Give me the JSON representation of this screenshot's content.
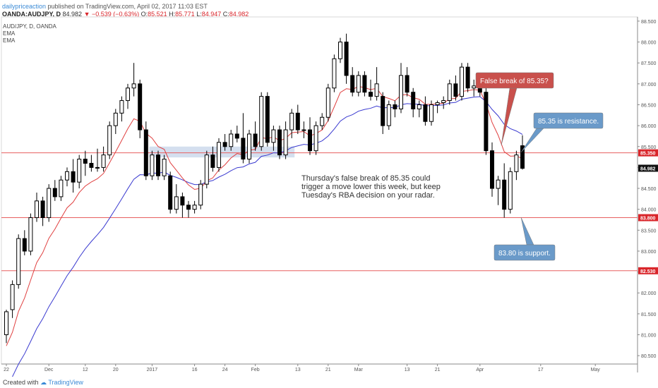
{
  "header": {
    "author": "dailypriceaction",
    "published_text": " published on TradingView.com, April 02, 2017 11:03 EST",
    "symbol": "OANDA:AUDJPY, D",
    "last_price": "84.982",
    "change": "−0.539 (−0.63%)",
    "open_label": "O:",
    "open_value": "85.521",
    "high_label": "H:",
    "high_value": "85.771",
    "low_label": "L:",
    "low_value": "84.947",
    "close_label": "C:",
    "close_value": "84.982"
  },
  "legend": {
    "title": "AUD/JPY, D, OANDA",
    "indicator1": "EMA",
    "indicator2": "EMA"
  },
  "footer": {
    "created_with": "Created with",
    "brand": "TradingView"
  },
  "annotations": {
    "main_text_lines": [
      "Thursday's false break of 85.35 could",
      "trigger a move lower this week, but keep",
      "Tuesday's RBA decision on your radar."
    ],
    "false_break": "False break of 85.35?",
    "resistance": "85.35 is resistance.",
    "support": "83.80 is support."
  },
  "colors": {
    "bull": "#ffffff",
    "bear": "#000000",
    "ema_fast": "#e04040",
    "ema_slow": "#3a3ad0",
    "level_line": "#e86060",
    "level_label": "#d9262b",
    "callout_red": "#c9504c",
    "callout_blue": "#6a9ac9",
    "zone": "#c6d4ea"
  },
  "chart_data": {
    "type": "candlestick",
    "y_axis": {
      "min": 80.3,
      "max": 88.6,
      "ticks": [
        "88.500",
        "88.000",
        "87.500",
        "87.000",
        "86.500",
        "86.000",
        "85.500",
        "85.000",
        "84.500",
        "84.000",
        "83.500",
        "83.000",
        "82.500",
        "82.000",
        "81.500",
        "81.000",
        "80.500"
      ]
    },
    "x_axis": {
      "labels": [
        {
          "i": 0,
          "t": "22"
        },
        {
          "i": 7,
          "t": "Dec"
        },
        {
          "i": 13,
          "t": "12"
        },
        {
          "i": 18,
          "t": "20"
        },
        {
          "i": 24,
          "t": "2017"
        },
        {
          "i": 31,
          "t": "16"
        },
        {
          "i": 36,
          "t": "24"
        },
        {
          "i": 41,
          "t": "Feb"
        },
        {
          "i": 48,
          "t": "13"
        },
        {
          "i": 53,
          "t": "21"
        },
        {
          "i": 58,
          "t": "Mar"
        },
        {
          "i": 66,
          "t": "13"
        },
        {
          "i": 71,
          "t": "21"
        },
        {
          "i": 78,
          "t": "Apr"
        },
        {
          "i": 88,
          "t": "17"
        },
        {
          "i": 97,
          "t": "May"
        }
      ]
    },
    "levels": [
      {
        "value": 85.35,
        "label": "85.350"
      },
      {
        "value": 83.8,
        "label": "83.800"
      },
      {
        "value": 82.53,
        "label": "82.530"
      }
    ],
    "last_price": {
      "value": 84.982,
      "label": "84.982"
    },
    "zone": {
      "from_i": 24,
      "to_i": 47,
      "low": 85.24,
      "high": 85.5
    },
    "candles": [
      {
        "o": 81.0,
        "h": 81.6,
        "l": 80.8,
        "c": 81.55
      },
      {
        "o": 81.6,
        "h": 82.3,
        "l": 81.4,
        "c": 82.2
      },
      {
        "o": 82.2,
        "h": 83.4,
        "l": 82.1,
        "c": 83.3
      },
      {
        "o": 83.3,
        "h": 83.5,
        "l": 82.9,
        "c": 83.0
      },
      {
        "o": 83.0,
        "h": 83.9,
        "l": 82.9,
        "c": 83.8
      },
      {
        "o": 83.8,
        "h": 84.4,
        "l": 83.7,
        "c": 84.2
      },
      {
        "o": 84.2,
        "h": 84.3,
        "l": 83.6,
        "c": 83.8
      },
      {
        "o": 83.8,
        "h": 84.6,
        "l": 83.7,
        "c": 84.5
      },
      {
        "o": 84.5,
        "h": 84.7,
        "l": 84.2,
        "c": 84.3
      },
      {
        "o": 84.3,
        "h": 84.8,
        "l": 84.2,
        "c": 84.7
      },
      {
        "o": 84.7,
        "h": 85.0,
        "l": 84.55,
        "c": 84.9
      },
      {
        "o": 84.9,
        "h": 85.2,
        "l": 84.4,
        "c": 84.65
      },
      {
        "o": 84.65,
        "h": 85.3,
        "l": 84.5,
        "c": 85.2
      },
      {
        "o": 85.2,
        "h": 85.4,
        "l": 84.8,
        "c": 85.1
      },
      {
        "o": 85.1,
        "h": 85.3,
        "l": 84.9,
        "c": 85.0
      },
      {
        "o": 85.0,
        "h": 85.45,
        "l": 84.9,
        "c": 85.0
      },
      {
        "o": 85.0,
        "h": 85.5,
        "l": 84.9,
        "c": 85.3
      },
      {
        "o": 85.3,
        "h": 86.1,
        "l": 85.2,
        "c": 86.0
      },
      {
        "o": 86.0,
        "h": 86.4,
        "l": 85.8,
        "c": 86.3
      },
      {
        "o": 86.3,
        "h": 86.7,
        "l": 86.1,
        "c": 86.6
      },
      {
        "o": 86.6,
        "h": 87.0,
        "l": 86.4,
        "c": 86.9
      },
      {
        "o": 86.9,
        "h": 87.5,
        "l": 86.7,
        "c": 87.0
      },
      {
        "o": 87.0,
        "h": 87.1,
        "l": 85.7,
        "c": 85.9
      },
      {
        "o": 85.9,
        "h": 86.1,
        "l": 84.7,
        "c": 84.8
      },
      {
        "o": 84.8,
        "h": 85.4,
        "l": 84.7,
        "c": 85.3
      },
      {
        "o": 85.3,
        "h": 85.4,
        "l": 84.7,
        "c": 84.8
      },
      {
        "o": 84.8,
        "h": 85.3,
        "l": 84.7,
        "c": 85.2
      },
      {
        "o": 84.8,
        "h": 84.9,
        "l": 83.9,
        "c": 84.0
      },
      {
        "o": 84.0,
        "h": 84.6,
        "l": 83.9,
        "c": 84.3
      },
      {
        "o": 84.3,
        "h": 84.4,
        "l": 83.8,
        "c": 84.1
      },
      {
        "o": 84.1,
        "h": 84.2,
        "l": 83.8,
        "c": 84.0
      },
      {
        "o": 84.0,
        "h": 84.2,
        "l": 83.9,
        "c": 84.1
      },
      {
        "o": 84.1,
        "h": 84.7,
        "l": 84.0,
        "c": 84.6
      },
      {
        "o": 84.6,
        "h": 85.4,
        "l": 84.5,
        "c": 85.3
      },
      {
        "o": 85.3,
        "h": 85.5,
        "l": 84.9,
        "c": 85.0
      },
      {
        "o": 85.0,
        "h": 85.7,
        "l": 84.9,
        "c": 85.6
      },
      {
        "o": 85.6,
        "h": 85.8,
        "l": 85.4,
        "c": 85.5
      },
      {
        "o": 85.5,
        "h": 85.9,
        "l": 85.4,
        "c": 85.8
      },
      {
        "o": 85.8,
        "h": 86.0,
        "l": 85.6,
        "c": 85.7
      },
      {
        "o": 85.7,
        "h": 86.3,
        "l": 85.1,
        "c": 85.2
      },
      {
        "o": 85.2,
        "h": 85.9,
        "l": 85.1,
        "c": 85.8
      },
      {
        "o": 85.8,
        "h": 86.1,
        "l": 85.4,
        "c": 85.5
      },
      {
        "o": 85.5,
        "h": 86.8,
        "l": 85.4,
        "c": 86.7
      },
      {
        "o": 86.7,
        "h": 86.8,
        "l": 85.5,
        "c": 85.6
      },
      {
        "o": 85.6,
        "h": 86.0,
        "l": 85.4,
        "c": 85.9
      },
      {
        "o": 85.9,
        "h": 86.0,
        "l": 85.2,
        "c": 85.3
      },
      {
        "o": 85.3,
        "h": 86.1,
        "l": 85.2,
        "c": 85.9
      },
      {
        "o": 85.9,
        "h": 86.4,
        "l": 85.7,
        "c": 86.3
      },
      {
        "o": 86.3,
        "h": 86.5,
        "l": 85.8,
        "c": 85.9
      },
      {
        "o": 85.9,
        "h": 86.1,
        "l": 85.7,
        "c": 85.9
      },
      {
        "o": 85.9,
        "h": 86.2,
        "l": 85.3,
        "c": 85.4
      },
      {
        "o": 85.4,
        "h": 86.1,
        "l": 85.3,
        "c": 86.0
      },
      {
        "o": 86.0,
        "h": 86.3,
        "l": 85.9,
        "c": 86.2
      },
      {
        "o": 86.2,
        "h": 87.0,
        "l": 86.1,
        "c": 86.9
      },
      {
        "o": 86.9,
        "h": 87.7,
        "l": 86.8,
        "c": 87.6
      },
      {
        "o": 87.6,
        "h": 88.1,
        "l": 87.5,
        "c": 88.0
      },
      {
        "o": 88.0,
        "h": 88.2,
        "l": 87.0,
        "c": 87.2
      },
      {
        "o": 87.2,
        "h": 87.4,
        "l": 86.7,
        "c": 86.8
      },
      {
        "o": 86.8,
        "h": 87.3,
        "l": 86.7,
        "c": 87.2
      },
      {
        "o": 87.2,
        "h": 87.3,
        "l": 86.7,
        "c": 86.8
      },
      {
        "o": 86.8,
        "h": 87.1,
        "l": 86.6,
        "c": 86.7
      },
      {
        "o": 86.7,
        "h": 87.4,
        "l": 86.6,
        "c": 87.0
      },
      {
        "o": 86.7,
        "h": 86.8,
        "l": 85.8,
        "c": 86.0
      },
      {
        "o": 86.0,
        "h": 86.6,
        "l": 85.9,
        "c": 86.5
      },
      {
        "o": 86.5,
        "h": 86.6,
        "l": 86.2,
        "c": 86.4
      },
      {
        "o": 86.4,
        "h": 87.5,
        "l": 86.3,
        "c": 87.2
      },
      {
        "o": 87.2,
        "h": 87.4,
        "l": 86.7,
        "c": 86.8
      },
      {
        "o": 86.8,
        "h": 86.9,
        "l": 86.2,
        "c": 86.4
      },
      {
        "o": 86.4,
        "h": 86.6,
        "l": 86.2,
        "c": 86.5
      },
      {
        "o": 86.5,
        "h": 86.7,
        "l": 86.0,
        "c": 86.1
      },
      {
        "o": 86.1,
        "h": 86.6,
        "l": 86.0,
        "c": 86.5
      },
      {
        "o": 86.5,
        "h": 86.6,
        "l": 86.3,
        "c": 86.55
      },
      {
        "o": 86.55,
        "h": 86.7,
        "l": 86.4,
        "c": 86.6
      },
      {
        "o": 86.6,
        "h": 87.1,
        "l": 86.5,
        "c": 87.0
      },
      {
        "o": 87.0,
        "h": 87.2,
        "l": 86.6,
        "c": 86.7
      },
      {
        "o": 86.7,
        "h": 87.5,
        "l": 86.6,
        "c": 87.4
      },
      {
        "o": 87.4,
        "h": 87.5,
        "l": 86.8,
        "c": 86.9
      },
      {
        "o": 86.9,
        "h": 87.1,
        "l": 86.7,
        "c": 86.95
      },
      {
        "o": 86.95,
        "h": 87.0,
        "l": 86.7,
        "c": 86.8
      },
      {
        "o": 86.8,
        "h": 86.9,
        "l": 85.3,
        "c": 85.4
      },
      {
        "o": 85.4,
        "h": 85.6,
        "l": 84.3,
        "c": 84.5
      },
      {
        "o": 84.5,
        "h": 84.8,
        "l": 84.1,
        "c": 84.7
      },
      {
        "o": 84.7,
        "h": 85.1,
        "l": 83.8,
        "c": 84.0
      },
      {
        "o": 84.0,
        "h": 85.0,
        "l": 83.9,
        "c": 84.9
      },
      {
        "o": 84.9,
        "h": 85.4,
        "l": 84.7,
        "c": 85.3
      },
      {
        "o": 85.52,
        "h": 85.77,
        "l": 84.95,
        "c": 84.98
      }
    ]
  }
}
